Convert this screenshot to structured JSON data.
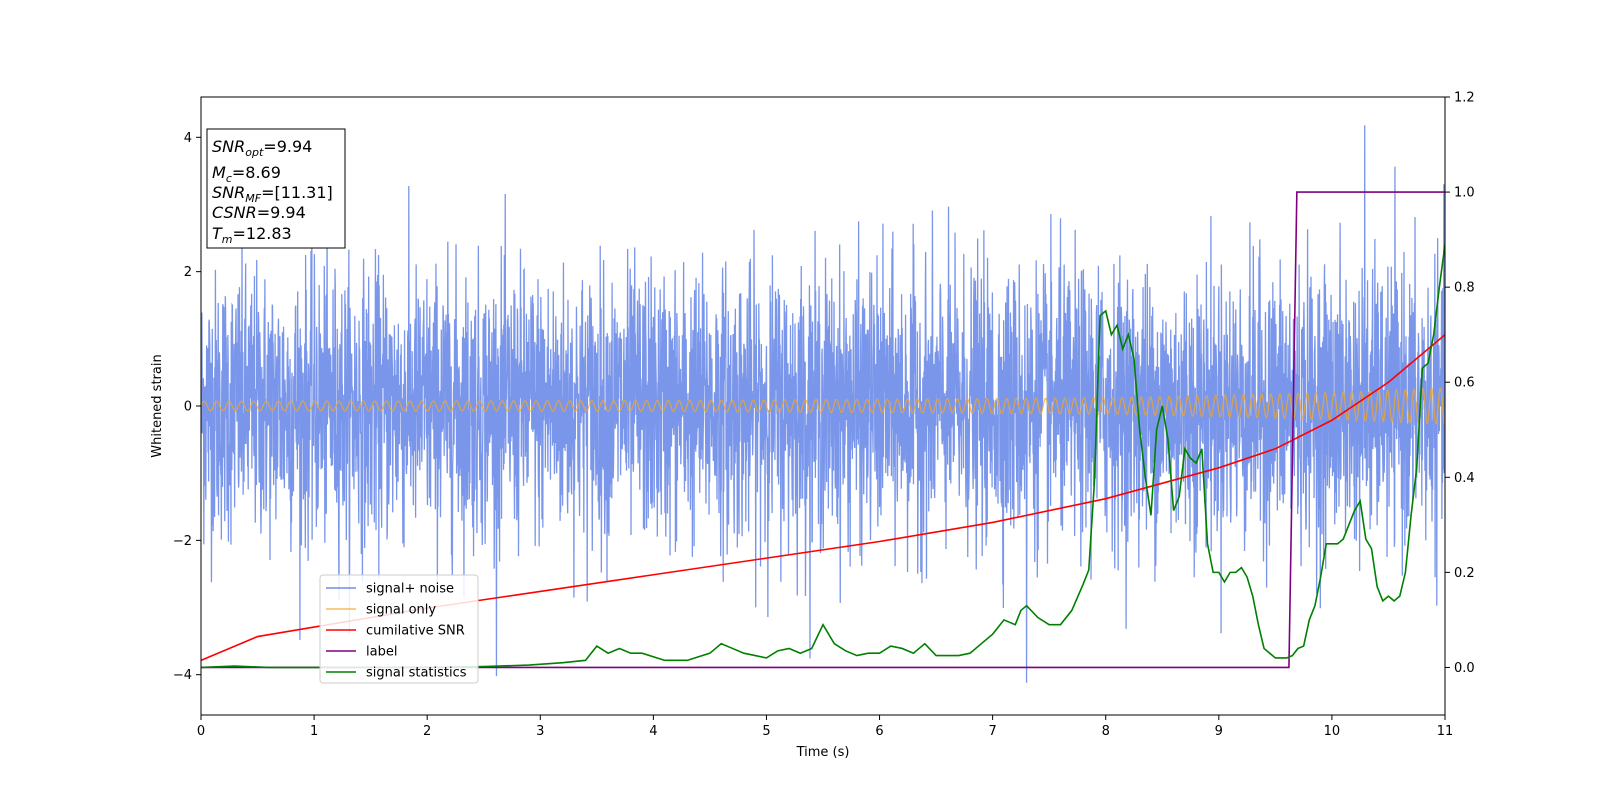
{
  "chart_data": {
    "type": "line",
    "xlabel": "Time (s)",
    "ylabel": "Whitened strain",
    "xlim": [
      0,
      11
    ],
    "ylim": [
      -4.6,
      4.6
    ],
    "y2lim": [
      -0.1,
      1.2
    ],
    "xticks": [
      "0",
      "1",
      "2",
      "3",
      "4",
      "5",
      "6",
      "7",
      "8",
      "9",
      "10",
      "11"
    ],
    "yticks": [
      "−4",
      "−2",
      "0",
      "2",
      "4"
    ],
    "y2ticks": [
      "0.0",
      "0.2",
      "0.4",
      "0.6",
      "0.8",
      "1.0",
      "1.2"
    ],
    "legend_position": "lower-left",
    "info_box": {
      "snr_opt": {
        "base": "SNR",
        "sub": "opt",
        "value": "=9.94"
      },
      "mc": {
        "base": "M",
        "sub": "c",
        "value": "=8.69"
      },
      "snr_mf": {
        "base": "SNR",
        "sub": "MF",
        "value": "=[11.31]"
      },
      "csnr": {
        "base": "CSNR",
        "value": "=9.94"
      },
      "tm": {
        "base": "T",
        "sub": "m",
        "value": "=12.83"
      }
    },
    "series": [
      {
        "name": "signal+ noise",
        "axis": "left",
        "color": "#4169e1",
        "description_values": {
          "approx_std": 1.0,
          "min": -4.12,
          "max": 4.18,
          "min_at": 7.3,
          "max_at": 10.29
        }
      },
      {
        "name": "signal only",
        "axis": "left",
        "color": "#f5a623",
        "amplitude": [
          [
            0,
            0.07
          ],
          [
            4,
            0.08
          ],
          [
            8,
            0.12
          ],
          [
            10,
            0.2
          ],
          [
            11,
            0.27
          ]
        ]
      },
      {
        "name": "cumilative SNR",
        "axis": "right",
        "color": "#ff0000",
        "x": [
          0,
          0.5,
          1,
          2,
          3,
          4,
          5,
          6,
          7,
          8,
          9,
          9.5,
          10,
          10.5,
          11
        ],
        "values": [
          0.015,
          0.065,
          0.085,
          0.125,
          0.16,
          0.195,
          0.23,
          0.265,
          0.305,
          0.355,
          0.42,
          0.46,
          0.52,
          0.6,
          0.7
        ]
      },
      {
        "name": "label",
        "axis": "right",
        "color": "#800080",
        "x": [
          0,
          9.62,
          9.69,
          11
        ],
        "values": [
          0,
          0,
          1,
          1
        ]
      },
      {
        "name": "signal statistics",
        "axis": "right",
        "color": "#008000",
        "x": [
          0,
          0.3,
          0.6,
          1,
          1.5,
          2,
          2.5,
          2.9,
          3.2,
          3.4,
          3.5,
          3.6,
          3.7,
          3.8,
          3.9,
          4.1,
          4.3,
          4.5,
          4.6,
          4.7,
          4.8,
          5.0,
          5.1,
          5.2,
          5.3,
          5.4,
          5.5,
          5.6,
          5.7,
          5.8,
          5.9,
          6.0,
          6.1,
          6.2,
          6.3,
          6.4,
          6.5,
          6.6,
          6.7,
          6.8,
          6.9,
          7.0,
          7.1,
          7.2,
          7.25,
          7.3,
          7.4,
          7.5,
          7.6,
          7.7,
          7.8,
          7.85,
          7.9,
          7.95,
          8.0,
          8.05,
          8.1,
          8.15,
          8.2,
          8.25,
          8.3,
          8.35,
          8.4,
          8.45,
          8.5,
          8.55,
          8.6,
          8.65,
          8.7,
          8.75,
          8.8,
          8.85,
          8.9,
          8.95,
          9.0,
          9.05,
          9.1,
          9.15,
          9.2,
          9.25,
          9.3,
          9.35,
          9.4,
          9.5,
          9.6,
          9.65,
          9.7,
          9.75,
          9.8,
          9.85,
          9.9,
          9.95,
          10.0,
          10.05,
          10.1,
          10.15,
          10.2,
          10.25,
          10.3,
          10.35,
          10.4,
          10.45,
          10.5,
          10.55,
          10.6,
          10.65,
          10.7,
          10.75,
          10.8,
          10.85,
          10.9,
          10.95,
          11.0
        ],
        "values": [
          0.0,
          0.003,
          0.0,
          0.0,
          0.0,
          0.0,
          0.002,
          0.005,
          0.01,
          0.015,
          0.045,
          0.03,
          0.04,
          0.03,
          0.03,
          0.015,
          0.015,
          0.03,
          0.05,
          0.04,
          0.03,
          0.02,
          0.035,
          0.04,
          0.03,
          0.04,
          0.09,
          0.05,
          0.035,
          0.025,
          0.03,
          0.03,
          0.045,
          0.04,
          0.03,
          0.05,
          0.025,
          0.025,
          0.025,
          0.03,
          0.05,
          0.07,
          0.1,
          0.09,
          0.12,
          0.13,
          0.105,
          0.09,
          0.09,
          0.12,
          0.175,
          0.205,
          0.39,
          0.74,
          0.75,
          0.7,
          0.72,
          0.67,
          0.7,
          0.65,
          0.5,
          0.4,
          0.32,
          0.5,
          0.55,
          0.48,
          0.33,
          0.36,
          0.46,
          0.44,
          0.43,
          0.46,
          0.26,
          0.2,
          0.2,
          0.18,
          0.2,
          0.2,
          0.21,
          0.19,
          0.15,
          0.09,
          0.04,
          0.02,
          0.02,
          0.025,
          0.04,
          0.045,
          0.1,
          0.13,
          0.19,
          0.26,
          0.26,
          0.26,
          0.27,
          0.3,
          0.33,
          0.35,
          0.27,
          0.25,
          0.17,
          0.14,
          0.15,
          0.14,
          0.15,
          0.2,
          0.32,
          0.42,
          0.63,
          0.64,
          0.7,
          0.8,
          0.89
        ]
      }
    ]
  }
}
